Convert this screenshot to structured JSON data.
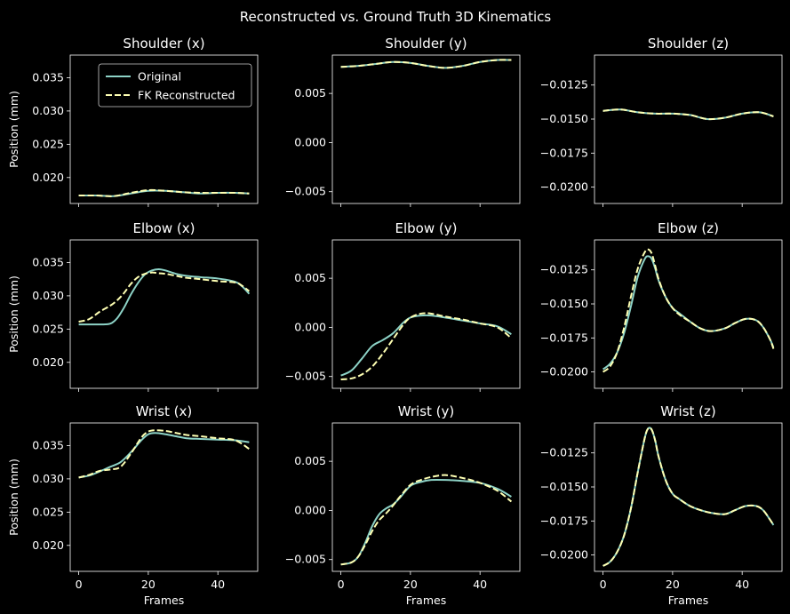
{
  "suptitle": "Reconstructed vs. Ground Truth 3D Kinematics",
  "legend": {
    "placement": "top-right",
    "entries": [
      "Original",
      "FK Reconstructed"
    ]
  },
  "colors": {
    "background": "#000000",
    "axes": "#ffffff",
    "original": "#8dd3c7",
    "reconstructed": "#feffb3"
  },
  "chart_data": [
    {
      "type": "line",
      "title": "Shoulder (x)",
      "xlabel": "",
      "ylabel": "Position (mm)",
      "xlim": [
        -2.45,
        51.45
      ],
      "ylim": [
        0.0161,
        0.0384
      ],
      "xticks": [
        0,
        20,
        40
      ],
      "yticks": [
        0.02,
        0.025,
        0.03,
        0.035
      ],
      "ytick_labels": [
        "0.020",
        "0.025",
        "0.030",
        "0.035"
      ],
      "show_xtick_labels": false,
      "series": [
        {
          "name": "Original",
          "x": [
            0,
            5,
            10,
            15,
            20,
            25,
            30,
            35,
            40,
            45,
            49
          ],
          "values": [
            0.0173,
            0.0173,
            0.0172,
            0.0176,
            0.018,
            0.018,
            0.0178,
            0.0176,
            0.0177,
            0.0177,
            0.0176
          ]
        },
        {
          "name": "FK Reconstructed",
          "x": [
            0,
            5,
            10,
            15,
            20,
            25,
            30,
            35,
            40,
            45,
            49
          ],
          "values": [
            0.0173,
            0.0173,
            0.0172,
            0.0177,
            0.0181,
            0.018,
            0.0178,
            0.0177,
            0.0177,
            0.0177,
            0.0176
          ]
        }
      ]
    },
    {
      "type": "line",
      "title": "Shoulder (y)",
      "xlabel": "",
      "ylabel": "",
      "xlim": [
        -2.45,
        51.45
      ],
      "ylim": [
        -0.0062,
        0.0089
      ],
      "xticks": [
        0,
        20,
        40
      ],
      "yticks": [
        -0.005,
        0.0,
        0.005
      ],
      "ytick_labels": [
        "−0.005",
        "0.000",
        "0.005"
      ],
      "show_xtick_labels": false,
      "series": [
        {
          "name": "Original",
          "x": [
            0,
            5,
            10,
            15,
            20,
            25,
            30,
            35,
            40,
            45,
            49
          ],
          "values": [
            0.0077,
            0.0078,
            0.008,
            0.0082,
            0.0081,
            0.0078,
            0.0076,
            0.0078,
            0.0082,
            0.0084,
            0.0084
          ]
        },
        {
          "name": "FK Reconstructed",
          "x": [
            0,
            5,
            10,
            15,
            20,
            25,
            30,
            35,
            40,
            45,
            49
          ],
          "values": [
            0.0077,
            0.0078,
            0.008,
            0.0082,
            0.0081,
            0.0078,
            0.0076,
            0.0078,
            0.0082,
            0.0084,
            0.0084
          ]
        }
      ]
    },
    {
      "type": "line",
      "title": "Shoulder (z)",
      "xlabel": "",
      "ylabel": "",
      "xlim": [
        -2.45,
        51.45
      ],
      "ylim": [
        -0.0212,
        -0.0103
      ],
      "xticks": [
        0,
        20,
        40
      ],
      "yticks": [
        -0.02,
        -0.0175,
        -0.015,
        -0.0125
      ],
      "ytick_labels": [
        "−0.0200",
        "−0.0175",
        "−0.0150",
        "−0.0125"
      ],
      "show_xtick_labels": false,
      "series": [
        {
          "name": "Original",
          "x": [
            0,
            5,
            10,
            15,
            20,
            25,
            30,
            35,
            40,
            45,
            49
          ],
          "values": [
            -0.0144,
            -0.0143,
            -0.0145,
            -0.0146,
            -0.0146,
            -0.0147,
            -0.015,
            -0.0149,
            -0.0146,
            -0.0145,
            -0.0148
          ]
        },
        {
          "name": "FK Reconstructed",
          "x": [
            0,
            5,
            10,
            15,
            20,
            25,
            30,
            35,
            40,
            45,
            49
          ],
          "values": [
            -0.0144,
            -0.0143,
            -0.0145,
            -0.0146,
            -0.0146,
            -0.0147,
            -0.015,
            -0.0149,
            -0.0146,
            -0.0145,
            -0.0148
          ]
        }
      ]
    },
    {
      "type": "line",
      "title": "Elbow (x)",
      "xlabel": "",
      "ylabel": "Position (mm)",
      "xlim": [
        -2.45,
        51.45
      ],
      "ylim": [
        0.0161,
        0.0384
      ],
      "xticks": [
        0,
        20,
        40
      ],
      "yticks": [
        0.02,
        0.025,
        0.03,
        0.035
      ],
      "ytick_labels": [
        "0.020",
        "0.025",
        "0.030",
        "0.035"
      ],
      "show_xtick_labels": false,
      "series": [
        {
          "name": "Original",
          "x": [
            0,
            3,
            6,
            9,
            11,
            13,
            15,
            17,
            19,
            21,
            23,
            25,
            28,
            31,
            35,
            40,
            45,
            47,
            49
          ],
          "values": [
            0.0257,
            0.0257,
            0.0257,
            0.0258,
            0.0266,
            0.0282,
            0.0302,
            0.0319,
            0.0332,
            0.0338,
            0.034,
            0.0338,
            0.0333,
            0.033,
            0.0328,
            0.0326,
            0.0321,
            0.0314,
            0.0303
          ]
        },
        {
          "name": "FK Reconstructed",
          "x": [
            0,
            3,
            6,
            9,
            11,
            13,
            15,
            17,
            19,
            21,
            23,
            25,
            28,
            31,
            35,
            40,
            45,
            47,
            49
          ],
          "values": [
            0.0261,
            0.0265,
            0.0276,
            0.0285,
            0.0293,
            0.0304,
            0.0318,
            0.0328,
            0.0333,
            0.0335,
            0.0334,
            0.0333,
            0.033,
            0.0327,
            0.0325,
            0.0322,
            0.032,
            0.0315,
            0.0307
          ]
        }
      ]
    },
    {
      "type": "line",
      "title": "Elbow (y)",
      "xlabel": "",
      "ylabel": "",
      "xlim": [
        -2.45,
        51.45
      ],
      "ylim": [
        -0.0062,
        0.0089
      ],
      "xticks": [
        0,
        20,
        40
      ],
      "yticks": [
        -0.005,
        0.0,
        0.005
      ],
      "ytick_labels": [
        "−0.005",
        "0.000",
        "0.005"
      ],
      "show_xtick_labels": false,
      "series": [
        {
          "name": "Original",
          "x": [
            0,
            3,
            6,
            9,
            12,
            15,
            18,
            20,
            23,
            26,
            30,
            35,
            40,
            45,
            49
          ],
          "values": [
            -0.0049,
            -0.0044,
            -0.0032,
            -0.0019,
            -0.0013,
            -0.0006,
            0.0005,
            0.001,
            0.0012,
            0.0012,
            0.001,
            0.0007,
            0.0004,
            0.0001,
            -0.0007
          ]
        },
        {
          "name": "FK Reconstructed",
          "x": [
            0,
            3,
            6,
            9,
            12,
            15,
            18,
            20,
            23,
            26,
            30,
            35,
            40,
            45,
            49
          ],
          "values": [
            -0.0053,
            -0.0052,
            -0.0048,
            -0.004,
            -0.0027,
            -0.0012,
            0.0003,
            0.001,
            0.0014,
            0.0014,
            0.0011,
            0.0008,
            0.0004,
            0.0,
            -0.0011
          ]
        }
      ]
    },
    {
      "type": "line",
      "title": "Elbow (z)",
      "xlabel": "",
      "ylabel": "",
      "xlim": [
        -2.45,
        51.45
      ],
      "ylim": [
        -0.0212,
        -0.0103
      ],
      "xticks": [
        0,
        20,
        40
      ],
      "yticks": [
        -0.02,
        -0.0175,
        -0.015,
        -0.0125
      ],
      "ytick_labels": [
        "−0.0200",
        "−0.0175",
        "−0.0150",
        "−0.0125"
      ],
      "show_xtick_labels": false,
      "series": [
        {
          "name": "Original",
          "x": [
            0,
            2,
            4,
            6,
            8,
            10,
            12,
            13,
            14,
            15,
            16,
            18,
            20,
            22,
            25,
            28,
            31,
            35,
            38,
            41,
            44,
            46,
            48,
            49
          ],
          "values": [
            -0.0198,
            -0.0194,
            -0.0186,
            -0.0172,
            -0.0152,
            -0.013,
            -0.0117,
            -0.0115,
            -0.0117,
            -0.0124,
            -0.0133,
            -0.0145,
            -0.0153,
            -0.0157,
            -0.0163,
            -0.0168,
            -0.017,
            -0.0168,
            -0.0164,
            -0.0161,
            -0.0162,
            -0.0167,
            -0.0176,
            -0.0182
          ]
        },
        {
          "name": "FK Reconstructed",
          "x": [
            0,
            2,
            4,
            6,
            8,
            10,
            12,
            13,
            14,
            15,
            16,
            18,
            20,
            22,
            25,
            28,
            31,
            35,
            38,
            41,
            44,
            46,
            48,
            49
          ],
          "values": [
            -0.02,
            -0.0196,
            -0.0186,
            -0.0168,
            -0.0145,
            -0.0124,
            -0.0112,
            -0.011,
            -0.0113,
            -0.0122,
            -0.0132,
            -0.0145,
            -0.0153,
            -0.0158,
            -0.0163,
            -0.0168,
            -0.017,
            -0.0168,
            -0.0164,
            -0.0161,
            -0.0162,
            -0.0167,
            -0.0176,
            -0.0183
          ]
        }
      ]
    },
    {
      "type": "line",
      "title": "Wrist (x)",
      "xlabel": "Frames",
      "ylabel": "Position (mm)",
      "xlim": [
        -2.45,
        51.45
      ],
      "ylim": [
        0.0161,
        0.0384
      ],
      "xticks": [
        0,
        20,
        40
      ],
      "yticks": [
        0.02,
        0.025,
        0.03,
        0.035
      ],
      "ytick_labels": [
        "0.020",
        "0.025",
        "0.030",
        "0.035"
      ],
      "show_xtick_labels": true,
      "series": [
        {
          "name": "Original",
          "x": [
            0,
            3,
            6,
            9,
            12,
            15,
            18,
            20,
            22,
            25,
            28,
            31,
            35,
            40,
            45,
            49
          ],
          "values": [
            0.0302,
            0.0305,
            0.0311,
            0.0318,
            0.0325,
            0.034,
            0.0358,
            0.0367,
            0.0369,
            0.0367,
            0.0364,
            0.0361,
            0.036,
            0.0359,
            0.0358,
            0.0355
          ]
        },
        {
          "name": "FK Reconstructed",
          "x": [
            0,
            3,
            6,
            9,
            12,
            15,
            18,
            20,
            22,
            25,
            28,
            31,
            35,
            40,
            45,
            49
          ],
          "values": [
            0.0302,
            0.0306,
            0.0312,
            0.0314,
            0.0318,
            0.0338,
            0.0362,
            0.0371,
            0.0373,
            0.0372,
            0.0369,
            0.0366,
            0.0364,
            0.0361,
            0.0358,
            0.0345
          ]
        }
      ]
    },
    {
      "type": "line",
      "title": "Wrist (y)",
      "xlabel": "Frames",
      "ylabel": "",
      "xlim": [
        -2.45,
        51.45
      ],
      "ylim": [
        -0.0062,
        0.0089
      ],
      "xticks": [
        0,
        20,
        40
      ],
      "yticks": [
        -0.005,
        0.0,
        0.005
      ],
      "ytick_labels": [
        "−0.005",
        "0.000",
        "0.005"
      ],
      "show_xtick_labels": true,
      "series": [
        {
          "name": "Original",
          "x": [
            0,
            3,
            5,
            7,
            9,
            11,
            13,
            15,
            17,
            20,
            23,
            26,
            30,
            35,
            40,
            45,
            49
          ],
          "values": [
            -0.0055,
            -0.0053,
            -0.0047,
            -0.0033,
            -0.0016,
            -0.0004,
            0.0002,
            0.0006,
            0.0013,
            0.0025,
            0.0029,
            0.0031,
            0.0031,
            0.003,
            0.0028,
            0.0022,
            0.0014
          ]
        },
        {
          "name": "FK Reconstructed",
          "x": [
            0,
            3,
            5,
            7,
            9,
            11,
            13,
            15,
            17,
            20,
            23,
            26,
            30,
            35,
            40,
            45,
            49
          ],
          "values": [
            -0.0055,
            -0.0053,
            -0.0047,
            -0.0035,
            -0.0021,
            -0.001,
            -0.0003,
            0.0005,
            0.0014,
            0.0026,
            0.0031,
            0.0034,
            0.0036,
            0.0033,
            0.0028,
            0.002,
            0.0009
          ]
        }
      ]
    },
    {
      "type": "line",
      "title": "Wrist (z)",
      "xlabel": "Frames",
      "ylabel": "",
      "xlim": [
        -2.45,
        51.45
      ],
      "ylim": [
        -0.0212,
        -0.0103
      ],
      "xticks": [
        0,
        20,
        40
      ],
      "yticks": [
        -0.02,
        -0.0175,
        -0.015,
        -0.0125
      ],
      "ytick_labels": [
        "−0.0200",
        "−0.0175",
        "−0.0150",
        "−0.0125"
      ],
      "show_xtick_labels": true,
      "series": [
        {
          "name": "Original",
          "x": [
            0,
            2,
            4,
            6,
            8,
            10,
            12,
            13,
            14,
            15,
            16,
            18,
            20,
            22,
            25,
            28,
            31,
            35,
            38,
            41,
            44,
            46,
            48,
            49
          ],
          "values": [
            -0.0208,
            -0.0205,
            -0.0198,
            -0.0186,
            -0.0166,
            -0.0139,
            -0.0114,
            -0.0107,
            -0.0108,
            -0.0116,
            -0.0128,
            -0.0145,
            -0.0155,
            -0.0159,
            -0.0164,
            -0.0167,
            -0.0169,
            -0.017,
            -0.0167,
            -0.0164,
            -0.0164,
            -0.0167,
            -0.0174,
            -0.0178
          ]
        },
        {
          "name": "FK Reconstructed",
          "x": [
            0,
            2,
            4,
            6,
            8,
            10,
            12,
            13,
            14,
            15,
            16,
            18,
            20,
            22,
            25,
            28,
            31,
            35,
            38,
            41,
            44,
            46,
            48,
            49
          ],
          "values": [
            -0.0208,
            -0.0205,
            -0.0198,
            -0.0186,
            -0.0166,
            -0.0139,
            -0.0114,
            -0.0107,
            -0.0108,
            -0.0116,
            -0.0128,
            -0.0145,
            -0.0155,
            -0.0159,
            -0.0164,
            -0.0167,
            -0.0169,
            -0.017,
            -0.0167,
            -0.0164,
            -0.0164,
            -0.0167,
            -0.0174,
            -0.0178
          ]
        }
      ]
    }
  ]
}
